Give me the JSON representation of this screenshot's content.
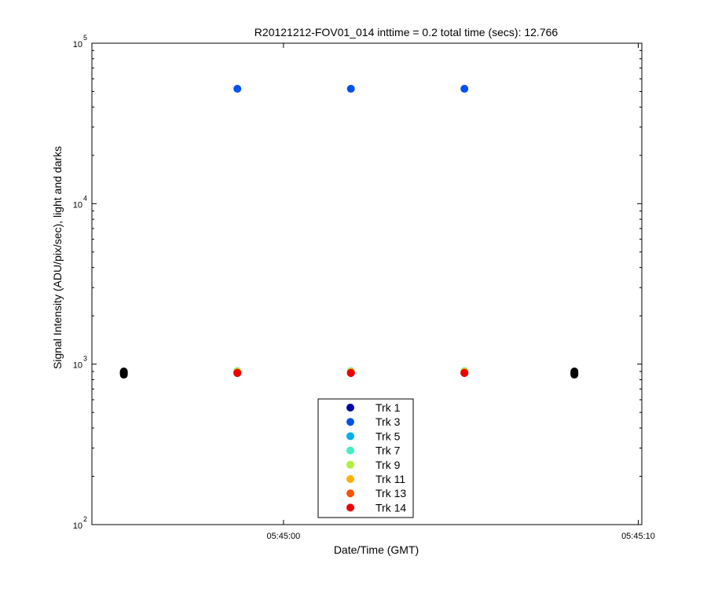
{
  "chart_data": {
    "type": "scatter",
    "title": "R20121212-FOV01_014 inttime = 0.2 total time (secs): 12.766",
    "xlabel": "Date/Time (GMT)",
    "ylabel": "Signal Intensity (ADU/pix/sec), light and darks",
    "y_scale": "log",
    "ylim": [
      100,
      100000
    ],
    "xlim": [
      "05:44:54.6",
      "05:45:10.1"
    ],
    "x_ticks": [
      {
        "value": "05:45:00",
        "label": "05:45:00"
      },
      {
        "value": "05:45:10",
        "label": "05:45:10"
      }
    ],
    "y_ticks": [
      {
        "value": 100,
        "base": "10",
        "exp": "2"
      },
      {
        "value": 1000,
        "base": "10",
        "exp": "3"
      },
      {
        "value": 10000,
        "base": "10",
        "exp": "4"
      },
      {
        "value": 100000,
        "base": "10",
        "exp": "5"
      }
    ],
    "grid": false,
    "legend_position": "bottom-center",
    "series": [
      {
        "name": "Trk 1",
        "color": "#0000aa",
        "points": [
          [
            "05:44:58.7",
            880
          ],
          [
            "05:45:01.9",
            880
          ],
          [
            "05:45:05.1",
            880
          ]
        ]
      },
      {
        "name": "Trk 3",
        "color": "#0050ee",
        "points": [
          [
            "05:44:58.7",
            52000
          ],
          [
            "05:45:01.9",
            52000
          ],
          [
            "05:45:05.1",
            52000
          ]
        ]
      },
      {
        "name": "Trk 5",
        "color": "#00b0ee",
        "points": [
          [
            "05:44:58.7",
            900
          ],
          [
            "05:45:01.9",
            900
          ],
          [
            "05:45:05.1",
            900
          ]
        ]
      },
      {
        "name": "Trk 7",
        "color": "#40f0c0",
        "points": [
          [
            "05:44:58.7",
            905
          ],
          [
            "05:45:01.9",
            905
          ],
          [
            "05:45:05.1",
            905
          ]
        ]
      },
      {
        "name": "Trk 9",
        "color": "#b0f040",
        "points": [
          [
            "05:44:58.7",
            900
          ],
          [
            "05:45:01.9",
            900
          ],
          [
            "05:45:05.1",
            900
          ]
        ]
      },
      {
        "name": "Trk 11",
        "color": "#ffb000",
        "points": [
          [
            "05:44:58.7",
            890
          ],
          [
            "05:45:01.9",
            890
          ],
          [
            "05:45:05.1",
            890
          ]
        ]
      },
      {
        "name": "Trk 13",
        "color": "#ff5000",
        "points": [
          [
            "05:44:58.7",
            885
          ],
          [
            "05:45:01.9",
            885
          ],
          [
            "05:45:05.1",
            885
          ]
        ]
      },
      {
        "name": "Trk 14",
        "color": "#ee0000",
        "points": [
          [
            "05:44:58.7",
            880
          ],
          [
            "05:45:01.9",
            880
          ],
          [
            "05:45:05.1",
            880
          ]
        ]
      }
    ],
    "dark_points": {
      "color": "#000000",
      "points": [
        [
          "05:44:55.5",
          860
        ],
        [
          "05:44:55.5",
          870
        ],
        [
          "05:44:55.5",
          880
        ],
        [
          "05:44:55.5",
          890
        ],
        [
          "05:44:55.5",
          900
        ],
        [
          "05:45:08.2",
          860
        ],
        [
          "05:45:08.2",
          870
        ],
        [
          "05:45:08.2",
          880
        ],
        [
          "05:45:08.2",
          890
        ],
        [
          "05:45:08.2",
          900
        ]
      ]
    }
  }
}
